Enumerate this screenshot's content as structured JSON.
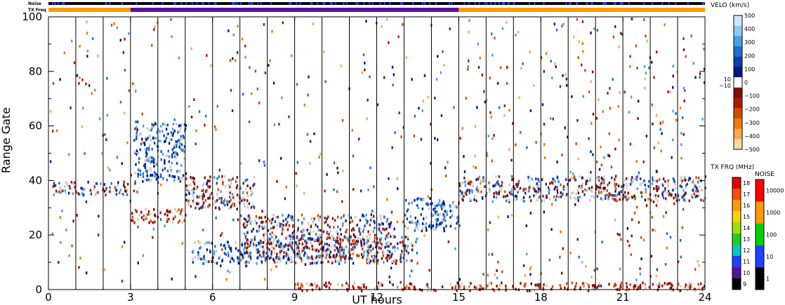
{
  "chart_data": {
    "type": "heatmap",
    "title": "",
    "xlabel": "UT hours",
    "ylabel": "Range Gate",
    "xlim": [
      0,
      24
    ],
    "ylim": [
      0,
      100
    ],
    "x_ticks": [
      0,
      3,
      6,
      9,
      12,
      15,
      18,
      21,
      24
    ],
    "y_ticks": [
      0,
      20,
      40,
      60,
      80,
      100
    ],
    "vertical_markers_hours": [
      1,
      2,
      3,
      4,
      5,
      6,
      7,
      8,
      9,
      10,
      11,
      12,
      13,
      14,
      15,
      16,
      17,
      18,
      19,
      20,
      21,
      22,
      23
    ],
    "top_bars": {
      "noise_label": "Noise",
      "txfreq_label": "TX Freq",
      "txfreq_segments": [
        {
          "start": 0,
          "end": 3,
          "color": "#ff9a00"
        },
        {
          "start": 3,
          "end": 15,
          "color": "#5a0fa0"
        },
        {
          "start": 15,
          "end": 24,
          "color": "#ff9a00"
        }
      ]
    },
    "scatter_bands": [
      {
        "start": 0,
        "end": 3,
        "gate_start": 35,
        "gate_end": 40,
        "sign": "mixed"
      },
      {
        "start": 3,
        "end": 5,
        "gate_start": 25,
        "gate_end": 30,
        "sign": "negative"
      },
      {
        "start": 3.1,
        "end": 5,
        "gate_start": 40,
        "gate_end": 62,
        "sign": "positive"
      },
      {
        "start": 5,
        "end": 7.5,
        "gate_start": 30,
        "gate_end": 42,
        "sign": "mixed"
      },
      {
        "start": 5.2,
        "end": 9,
        "gate_start": 10,
        "gate_end": 18,
        "sign": "positive"
      },
      {
        "start": 7,
        "end": 12.5,
        "gate_start": 12,
        "gate_end": 28,
        "sign": "mixed"
      },
      {
        "start": 9,
        "end": 13.5,
        "gate_start": 10,
        "gate_end": 20,
        "sign": "mixed"
      },
      {
        "start": 13,
        "end": 15,
        "gate_start": 22,
        "gate_end": 34,
        "sign": "positive"
      },
      {
        "start": 15,
        "end": 24,
        "gate_start": 33,
        "gate_end": 42,
        "sign": "mixed"
      },
      {
        "start": 9,
        "end": 24,
        "gate_start": 0,
        "gate_end": 3,
        "sign": "negative"
      }
    ],
    "velocity_colorbar": {
      "title": "VELO (km/s)",
      "tick_labels": [
        "500",
        "400",
        "300",
        "200",
        "100",
        "0",
        "−100",
        "−200",
        "−300",
        "−400",
        "−500"
      ],
      "side_labels": [
        "10",
        "−10"
      ],
      "colors": [
        "#cfe8ff",
        "#8ccaf5",
        "#4aa0e8",
        "#1f6fd4",
        "#0a3fae",
        "#001a80",
        "#ffffff",
        "#801000",
        "#b01a00",
        "#d84a00",
        "#f07a00",
        "#ffa84d",
        "#ffd9a8"
      ]
    },
    "txfreq_colorbar": {
      "title": "TX FRQ (MHz)",
      "tick_labels": [
        "18",
        "17",
        "16",
        "15",
        "14",
        "13",
        "12",
        "11",
        "10",
        "9"
      ],
      "colors": [
        "#e00000",
        "#ff4a00",
        "#ff9a00",
        "#ffd000",
        "#a0e000",
        "#20d020",
        "#00c8c8",
        "#2040ff",
        "#5a0fa0",
        "#000000"
      ]
    },
    "noise_colorbar": {
      "title": "NOISE",
      "tick_labels": [
        "10000",
        "1000",
        "100",
        "10",
        "1"
      ],
      "colors": [
        "#ff0000",
        "#ff9a00",
        "#00d000",
        "#2040ff",
        "#000000"
      ]
    }
  }
}
